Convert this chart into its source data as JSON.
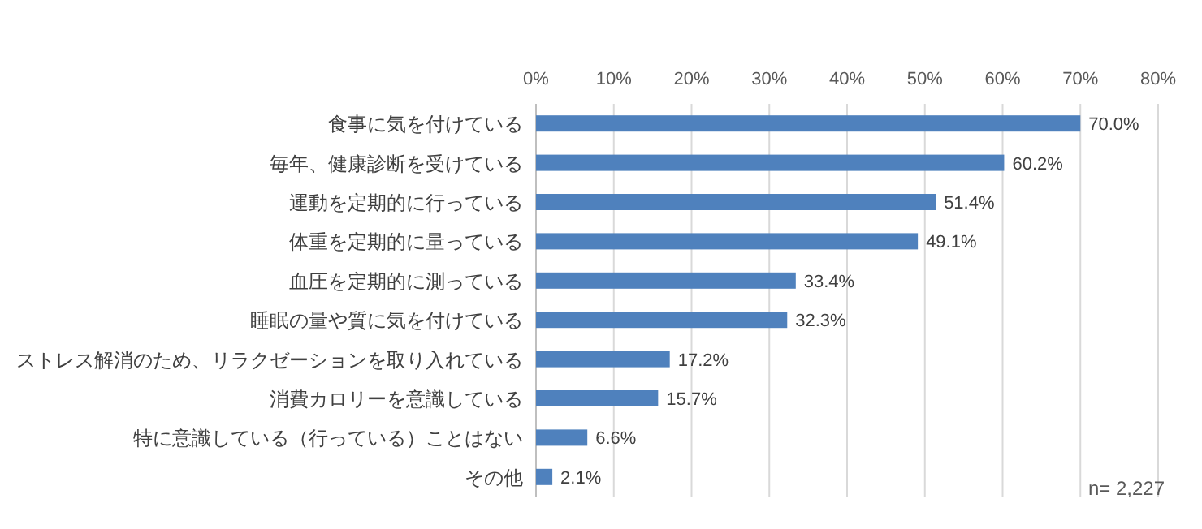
{
  "chart_data": {
    "type": "bar",
    "orientation": "horizontal",
    "categories": [
      "食事に気を付けている",
      "毎年、健康診断を受けている",
      "運動を定期的に行っている",
      "体重を定期的に量っている",
      "血圧を定期的に測っている",
      "睡眠の量や質に気を付けている",
      "ストレス解消のため、リラクゼーションを取り入れている",
      "消費カロリーを意識している",
      "特に意識している（行っている）ことはない",
      "その他"
    ],
    "values": [
      70.0,
      60.2,
      51.4,
      49.1,
      33.4,
      32.3,
      17.2,
      15.7,
      6.6,
      2.1
    ],
    "value_labels": [
      "70.0%",
      "60.2%",
      "51.4%",
      "49.1%",
      "33.4%",
      "32.3%",
      "17.2%",
      "15.7%",
      "6.6%",
      "2.1%"
    ],
    "color": "#4f81bd",
    "xlim": [
      0,
      80
    ],
    "xticks": [
      {
        "value": 0,
        "label": "0%"
      },
      {
        "value": 10,
        "label": "10%"
      },
      {
        "value": 20,
        "label": "20%"
      },
      {
        "value": 30,
        "label": "30%"
      },
      {
        "value": 40,
        "label": "40%"
      },
      {
        "value": 50,
        "label": "50%"
      },
      {
        "value": 60,
        "label": "60%"
      },
      {
        "value": 70,
        "label": "70%"
      },
      {
        "value": 80,
        "label": "80%"
      }
    ],
    "grid": "x",
    "annotations": [
      "n= 2,227"
    ]
  }
}
